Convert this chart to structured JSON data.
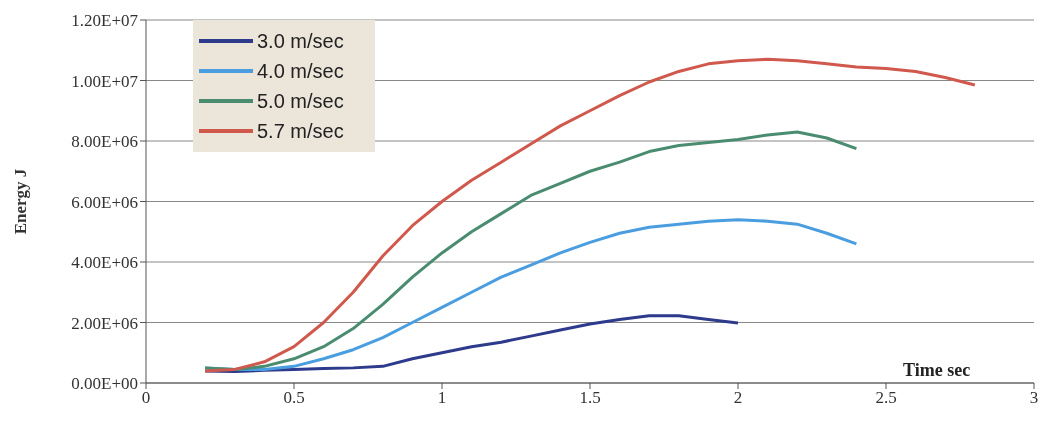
{
  "chart_data": {
    "type": "line",
    "xlabel": "Time sec",
    "ylabel": "Energy J",
    "xlim": [
      0,
      3
    ],
    "xticks": [
      0,
      0.5,
      1,
      1.5,
      2,
      2.5,
      3
    ],
    "ylim": [
      0,
      12000000
    ],
    "yticks": [
      {
        "value": 0,
        "label": "0.00E+00"
      },
      {
        "value": 2000000,
        "label": "2.00E+06"
      },
      {
        "value": 4000000,
        "label": "4.00E+06"
      },
      {
        "value": 6000000,
        "label": "6.00E+06"
      },
      {
        "value": 8000000,
        "label": "8.00E+06"
      },
      {
        "value": 10000000,
        "label": "1.00E+07"
      },
      {
        "value": 12000000,
        "label": "1.20E+07"
      }
    ],
    "grid": "y",
    "legend": "top left",
    "marker": "none",
    "line_style": "solid",
    "series": [
      {
        "name": "3.0 m/sec",
        "color": "#2e3a8c",
        "x": [
          0.2,
          0.3,
          0.4,
          0.5,
          0.6,
          0.7,
          0.8,
          0.9,
          1.0,
          1.1,
          1.2,
          1.3,
          1.4,
          1.5,
          1.6,
          1.7,
          1.8,
          1.9,
          2.0
        ],
        "values": [
          400000,
          380000,
          420000,
          450000,
          480000,
          500000,
          550000,
          800000,
          1000000,
          1200000,
          1350000,
          1550000,
          1750000,
          1950000,
          2100000,
          2220000,
          2220000,
          2100000,
          1980000
        ]
      },
      {
        "name": "4.0 m/sec",
        "color": "#4a9ee0",
        "x": [
          0.2,
          0.3,
          0.4,
          0.5,
          0.6,
          0.7,
          0.8,
          0.9,
          1.0,
          1.1,
          1.2,
          1.3,
          1.4,
          1.5,
          1.6,
          1.7,
          1.8,
          1.9,
          2.0,
          2.1,
          2.2,
          2.3,
          2.4
        ],
        "values": [
          500000,
          450000,
          450000,
          550000,
          800000,
          1100000,
          1500000,
          2000000,
          2500000,
          3000000,
          3500000,
          3900000,
          4300000,
          4650000,
          4950000,
          5150000,
          5250000,
          5350000,
          5400000,
          5350000,
          5250000,
          4950000,
          4600000
        ]
      },
      {
        "name": "5.0 m/sec",
        "color": "#4a8c70",
        "x": [
          0.2,
          0.3,
          0.4,
          0.5,
          0.6,
          0.7,
          0.8,
          0.9,
          1.0,
          1.1,
          1.2,
          1.3,
          1.4,
          1.5,
          1.6,
          1.7,
          1.8,
          1.9,
          2.0,
          2.1,
          2.2,
          2.3,
          2.4
        ],
        "values": [
          500000,
          450000,
          550000,
          800000,
          1200000,
          1800000,
          2600000,
          3500000,
          4300000,
          5000000,
          5600000,
          6200000,
          6600000,
          7000000,
          7300000,
          7650000,
          7850000,
          7950000,
          8050000,
          8200000,
          8300000,
          8100000,
          7750000
        ]
      },
      {
        "name": "5.7 m/sec",
        "color": "#d0584c",
        "x": [
          0.2,
          0.3,
          0.4,
          0.5,
          0.6,
          0.7,
          0.8,
          0.9,
          1.0,
          1.1,
          1.2,
          1.3,
          1.4,
          1.5,
          1.6,
          1.7,
          1.8,
          1.9,
          2.0,
          2.1,
          2.2,
          2.3,
          2.4,
          2.5,
          2.6,
          2.7,
          2.8
        ],
        "values": [
          400000,
          450000,
          700000,
          1200000,
          2000000,
          3000000,
          4200000,
          5200000,
          6000000,
          6700000,
          7300000,
          7900000,
          8500000,
          9000000,
          9500000,
          9950000,
          10300000,
          10550000,
          10650000,
          10700000,
          10650000,
          10550000,
          10450000,
          10400000,
          10300000,
          10100000,
          9850000
        ]
      }
    ]
  }
}
